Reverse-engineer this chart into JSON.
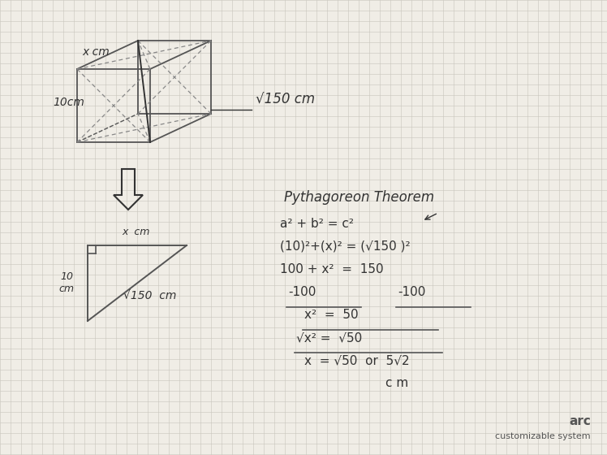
{
  "bg_color": "#e8e5de",
  "paper_color": "#f0ede6",
  "grid_color": "#c8c5bc",
  "ink_color": "#555555",
  "ink_dark": "#333333",
  "title": "Pythagoreon Theorem",
  "cube_label_top": "x cm",
  "cube_label_left": "10cm",
  "cube_diag_label": "√150 cm",
  "triangle_label_vert": "10\ncm",
  "triangle_label_horiz": "x  cm",
  "triangle_label_hyp": "√150  cm",
  "eq1": "a² + b² = c²",
  "eq2": "(10)²+(x)² = (√150 )²",
  "eq3": "100 + x²  =  150",
  "eq4a": "-100",
  "eq4b": "-100",
  "eq5": "x²  =  50",
  "eq6": "√x² =  √50",
  "eq7": "x  = √50  or  5√2",
  "eq8": "c m",
  "watermark1": "arc",
  "watermark2": "customizable system"
}
